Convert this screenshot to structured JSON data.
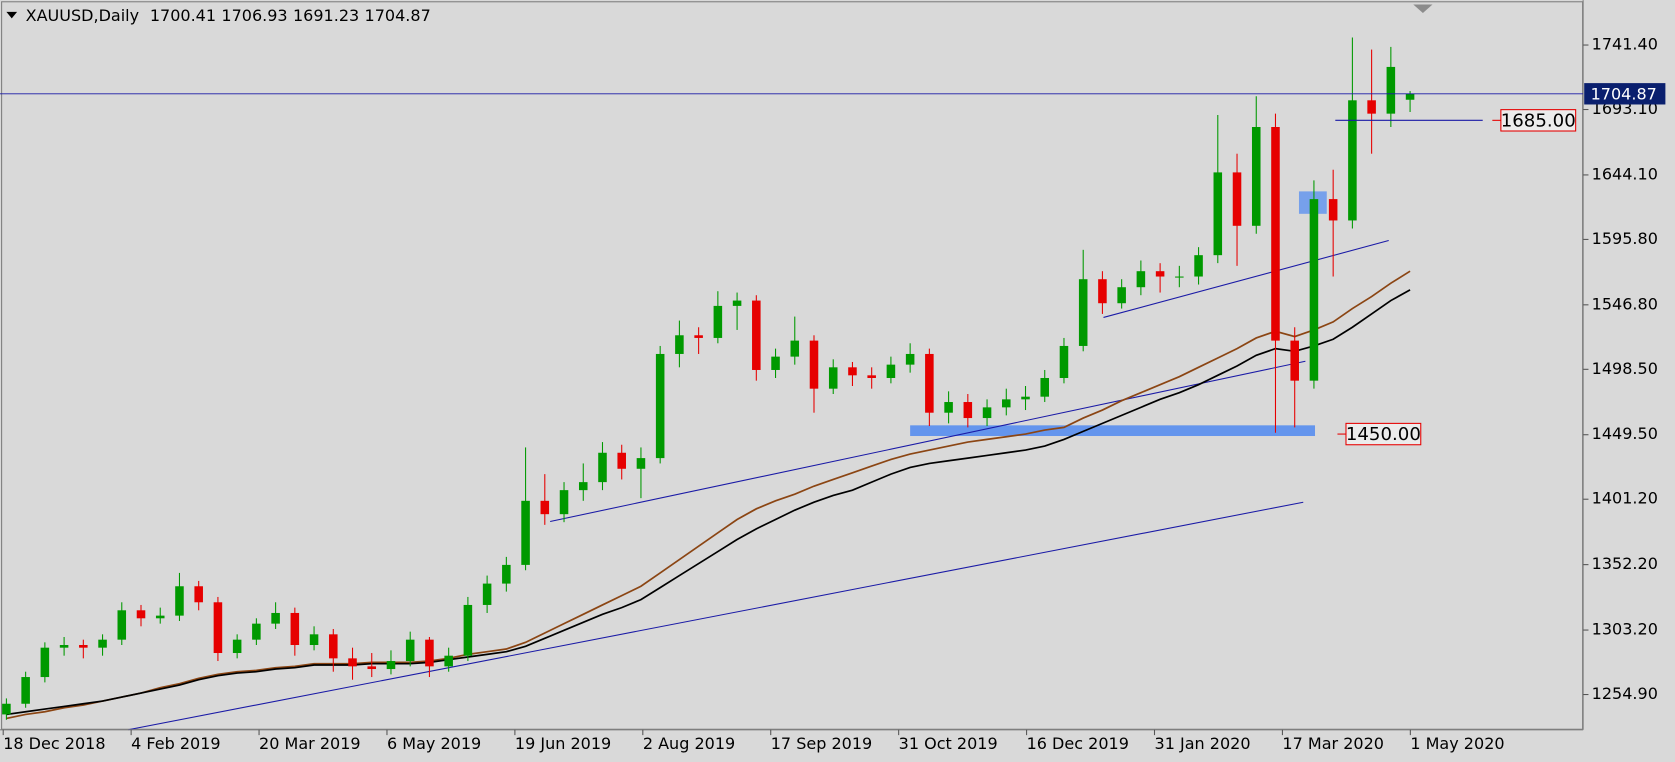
{
  "chart_data": {
    "type": "candlestick",
    "title": "XAUUSD,Daily",
    "up_color": "#009900",
    "down_color": "#e60000",
    "ylim": [
      1228.5,
      1773.4
    ],
    "yticks": [
      {
        "value": 1741.4,
        "label": "1741.40"
      },
      {
        "value": 1693.1,
        "label": "1693.10"
      },
      {
        "value": 1644.1,
        "label": "1644.10"
      },
      {
        "value": 1595.8,
        "label": "1595.80"
      },
      {
        "value": 1546.8,
        "label": "1546.80"
      },
      {
        "value": 1498.5,
        "label": "1498.50"
      },
      {
        "value": 1449.5,
        "label": "1449.50"
      },
      {
        "value": 1401.2,
        "label": "1401.20"
      },
      {
        "value": 1352.2,
        "label": "1352.20"
      },
      {
        "value": 1303.2,
        "label": "1303.20"
      },
      {
        "value": 1254.9,
        "label": "1254.90"
      }
    ],
    "xticks": [
      "18 Dec 2018",
      "4 Feb 2019",
      "20 Mar 2019",
      "6 May 2019",
      "19 Jun 2019",
      "2 Aug 2019",
      "17 Sep 2019",
      "31 Oct 2019",
      "16 Dec 2019",
      "31 Jan 2020",
      "17 Mar 2020",
      "1 May 2020"
    ],
    "candles": [
      [
        1240,
        1252,
        1236,
        1248
      ],
      [
        1248,
        1272,
        1245,
        1268
      ],
      [
        1268,
        1294,
        1264,
        1290
      ],
      [
        1290,
        1298,
        1284,
        1292
      ],
      [
        1292,
        1296,
        1282,
        1290
      ],
      [
        1290,
        1300,
        1284,
        1296
      ],
      [
        1296,
        1324,
        1292,
        1318
      ],
      [
        1318,
        1322,
        1306,
        1312
      ],
      [
        1312,
        1320,
        1308,
        1314
      ],
      [
        1314,
        1346,
        1310,
        1336
      ],
      [
        1336,
        1340,
        1318,
        1324
      ],
      [
        1324,
        1328,
        1280,
        1286
      ],
      [
        1286,
        1300,
        1282,
        1296
      ],
      [
        1296,
        1312,
        1292,
        1308
      ],
      [
        1308,
        1324,
        1304,
        1316
      ],
      [
        1316,
        1320,
        1284,
        1292
      ],
      [
        1292,
        1306,
        1288,
        1300
      ],
      [
        1300,
        1304,
        1272,
        1282
      ],
      [
        1282,
        1290,
        1266,
        1276
      ],
      [
        1276,
        1286,
        1268,
        1274
      ],
      [
        1274,
        1288,
        1270,
        1280
      ],
      [
        1280,
        1302,
        1276,
        1296
      ],
      [
        1296,
        1298,
        1268,
        1276
      ],
      [
        1276,
        1290,
        1272,
        1284
      ],
      [
        1284,
        1328,
        1280,
        1322
      ],
      [
        1322,
        1344,
        1316,
        1338
      ],
      [
        1338,
        1358,
        1332,
        1352
      ],
      [
        1352,
        1440,
        1348,
        1400
      ],
      [
        1400,
        1420,
        1382,
        1390
      ],
      [
        1390,
        1414,
        1384,
        1408
      ],
      [
        1408,
        1428,
        1400,
        1414
      ],
      [
        1414,
        1444,
        1408,
        1436
      ],
      [
        1436,
        1442,
        1416,
        1424
      ],
      [
        1424,
        1440,
        1402,
        1432
      ],
      [
        1432,
        1516,
        1428,
        1510
      ],
      [
        1510,
        1535,
        1500,
        1524
      ],
      [
        1524,
        1530,
        1510,
        1522
      ],
      [
        1522,
        1557,
        1518,
        1546
      ],
      [
        1546,
        1556,
        1528,
        1550
      ],
      [
        1550,
        1554,
        1490,
        1498
      ],
      [
        1498,
        1514,
        1492,
        1508
      ],
      [
        1508,
        1538,
        1502,
        1520
      ],
      [
        1520,
        1524,
        1466,
        1484
      ],
      [
        1484,
        1506,
        1480,
        1500
      ],
      [
        1500,
        1504,
        1486,
        1494
      ],
      [
        1494,
        1500,
        1484,
        1492
      ],
      [
        1492,
        1508,
        1488,
        1502
      ],
      [
        1502,
        1518,
        1496,
        1510
      ],
      [
        1510,
        1514,
        1456,
        1466
      ],
      [
        1466,
        1482,
        1458,
        1474
      ],
      [
        1474,
        1480,
        1455,
        1462
      ],
      [
        1462,
        1476,
        1456,
        1470
      ],
      [
        1470,
        1484,
        1464,
        1476
      ],
      [
        1476,
        1486,
        1468,
        1478
      ],
      [
        1478,
        1498,
        1474,
        1492
      ],
      [
        1492,
        1522,
        1488,
        1516
      ],
      [
        1516,
        1588,
        1512,
        1566
      ],
      [
        1566,
        1572,
        1540,
        1548
      ],
      [
        1548,
        1566,
        1544,
        1560
      ],
      [
        1560,
        1580,
        1554,
        1572
      ],
      [
        1572,
        1578,
        1556,
        1568
      ],
      [
        1568,
        1576,
        1560,
        1568
      ],
      [
        1568,
        1590,
        1562,
        1584
      ],
      [
        1584,
        1689,
        1578,
        1646
      ],
      [
        1646,
        1660,
        1576,
        1606
      ],
      [
        1606,
        1703,
        1600,
        1680
      ],
      [
        1680,
        1690,
        1451,
        1520
      ],
      [
        1520,
        1530,
        1455,
        1490
      ],
      [
        1490,
        1640,
        1484,
        1626
      ],
      [
        1626,
        1648,
        1568,
        1610
      ],
      [
        1610,
        1747,
        1604,
        1700
      ],
      [
        1700,
        1738,
        1660,
        1690
      ],
      [
        1690,
        1740,
        1680,
        1725
      ],
      [
        1700.41,
        1706.93,
        1691.23,
        1704.87
      ]
    ],
    "moving_averages": [
      {
        "color": "#8b4513",
        "values": [
          1237,
          1240,
          1242,
          1245,
          1247,
          1250,
          1253,
          1256,
          1260,
          1263,
          1267,
          1270,
          1272,
          1273,
          1275,
          1276,
          1278,
          1278,
          1278,
          1279,
          1279,
          1279,
          1280,
          1282,
          1285,
          1287,
          1289,
          1294,
          1301,
          1308,
          1315,
          1322,
          1329,
          1336,
          1346,
          1356,
          1366,
          1376,
          1386,
          1394,
          1400,
          1405,
          1411,
          1416,
          1421,
          1426,
          1431,
          1435,
          1438,
          1441,
          1444,
          1446,
          1448,
          1450,
          1453,
          1455,
          1462,
          1468,
          1475,
          1481,
          1487,
          1493,
          1500,
          1507,
          1514,
          1522,
          1527,
          1523,
          1528,
          1534,
          1544,
          1553,
          1563,
          1572
        ]
      },
      {
        "color": "#000000",
        "values": [
          1240,
          1242,
          1244,
          1246,
          1248,
          1250,
          1253,
          1256,
          1259,
          1262,
          1266,
          1269,
          1271,
          1272,
          1274,
          1275,
          1277,
          1277,
          1277,
          1278,
          1278,
          1278,
          1279,
          1281,
          1283,
          1285,
          1287,
          1291,
          1297,
          1303,
          1309,
          1315,
          1320,
          1326,
          1335,
          1344,
          1353,
          1362,
          1371,
          1379,
          1386,
          1393,
          1399,
          1404,
          1408,
          1414,
          1420,
          1425,
          1428,
          1430,
          1432,
          1434,
          1436,
          1438,
          1441,
          1446,
          1452,
          1458,
          1464,
          1470,
          1476,
          1481,
          1487,
          1494,
          1501,
          1509,
          1514,
          1512,
          1516,
          1521,
          1530,
          1540,
          1550,
          1558
        ]
      }
    ],
    "levels": [
      {
        "value": 1685,
        "label": "1685.00"
      },
      {
        "value": 1450,
        "label": "1450.00"
      }
    ]
  }
}
